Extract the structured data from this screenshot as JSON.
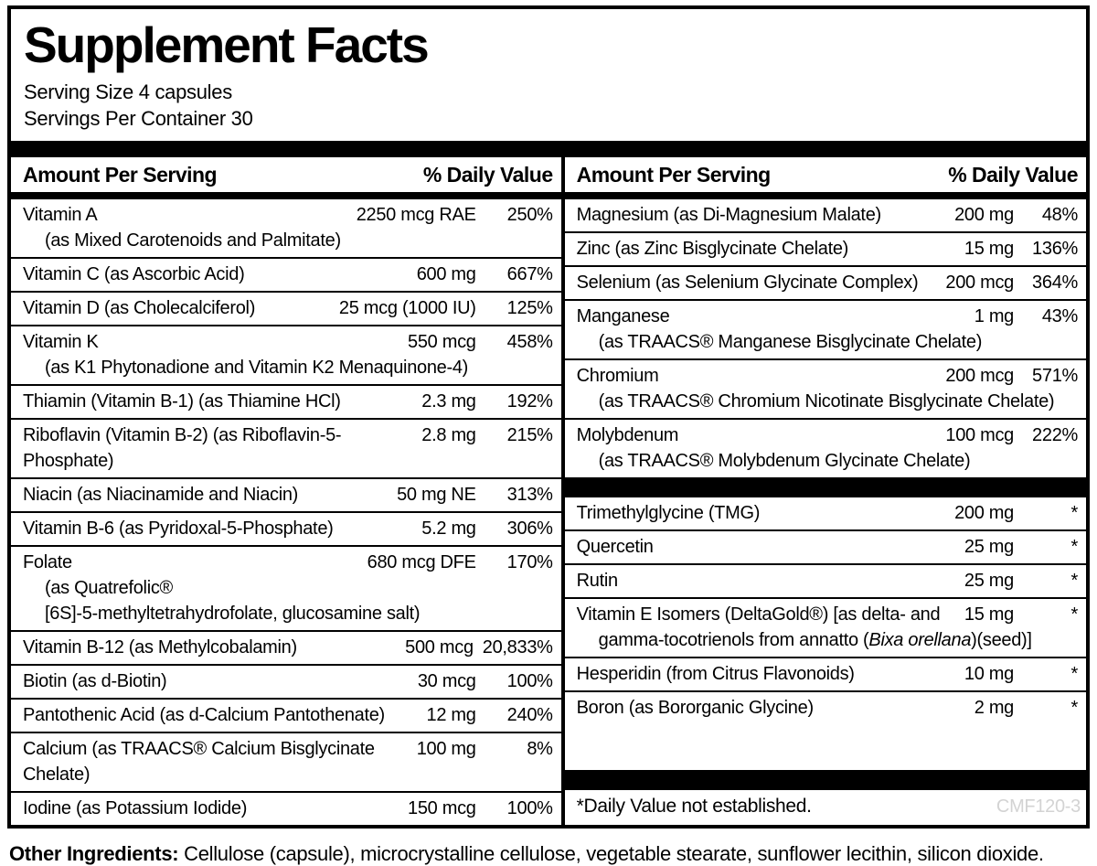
{
  "header": {
    "title": "Supplement Facts",
    "serving_size": "Serving Size 4 capsules",
    "servings_per_container": "Servings Per Container 30"
  },
  "table_header": {
    "amount": "Amount Per Serving",
    "dv": "% Daily Value"
  },
  "left": {
    "rows": [
      {
        "name": "Vitamin A",
        "sub": "(as Mixed Carotenoids and Palmitate)",
        "amount": "2250 mcg RAE",
        "dv": "250%"
      },
      {
        "name": "Vitamin C (as Ascorbic Acid)",
        "amount": "600 mg",
        "dv": "667%"
      },
      {
        "name": "Vitamin D (as Cholecalciferol)",
        "amount": "25 mcg (1000 IU)",
        "dv": "125%"
      },
      {
        "name": "Vitamin K",
        "sub": "(as K1 Phytonadione and Vitamin K2 Menaquinone-4)",
        "amount": "550 mcg",
        "dv": "458%"
      },
      {
        "name": "Thiamin (Vitamin B-1) (as Thiamine HCl)",
        "amount": "2.3 mg",
        "dv": "192%"
      },
      {
        "name": "Riboflavin (Vitamin B-2) (as Riboflavin-5-Phosphate)",
        "amount": "2.8 mg",
        "dv": "215%"
      },
      {
        "name": "Niacin (as Niacinamide and Niacin)",
        "amount": "50 mg NE",
        "dv": "313%"
      },
      {
        "name": "Vitamin B-6 (as Pyridoxal-5-Phosphate)",
        "amount": "5.2 mg",
        "dv": "306%"
      },
      {
        "name": "Folate",
        "sub": "(as Quatrefolic®",
        "sub2": "[6S]-5-methyltetrahydrofolate, glucosamine salt)",
        "amount": "680 mcg DFE",
        "dv": "170%"
      },
      {
        "name": "Vitamin B-12 (as Methylcobalamin)",
        "amount": "500 mcg",
        "dv": "20,833%"
      },
      {
        "name": "Biotin (as d-Biotin)",
        "amount": "30 mcg",
        "dv": "100%"
      },
      {
        "name": "Pantothenic Acid (as d-Calcium Pantothenate)",
        "amount": "12 mg",
        "dv": "240%"
      },
      {
        "name": "Calcium (as TRAACS® Calcium Bisglycinate Chelate)",
        "amount": "100 mg",
        "dv": "8%"
      },
      {
        "name": "Iodine (as Potassium Iodide)",
        "amount": "150 mcg",
        "dv": "100%"
      }
    ]
  },
  "right": {
    "minerals": [
      {
        "name": "Magnesium (as Di-Magnesium Malate)",
        "amount": "200 mg",
        "dv": "48%"
      },
      {
        "name": "Zinc (as Zinc Bisglycinate Chelate)",
        "amount": "15 mg",
        "dv": "136%"
      },
      {
        "name": "Selenium (as Selenium Glycinate Complex)",
        "amount": "200 mcg",
        "dv": "364%"
      },
      {
        "name": "Manganese",
        "sub": "(as TRAACS® Manganese Bisglycinate Chelate)",
        "amount": "1 mg",
        "dv": "43%"
      },
      {
        "name": "Chromium",
        "sub": "(as TRAACS® Chromium Nicotinate Bisglycinate Chelate)",
        "amount": "200 mcg",
        "dv": "571%"
      },
      {
        "name": "Molybdenum",
        "sub": "(as TRAACS® Molybdenum Glycinate Chelate)",
        "amount": "100 mcg",
        "dv": "222%"
      }
    ],
    "others": [
      {
        "name": "Trimethylglycine (TMG)",
        "amount": "200 mg",
        "dv": "*"
      },
      {
        "name": "Quercetin",
        "amount": "25 mg",
        "dv": "*"
      },
      {
        "name": "Rutin",
        "amount": "25 mg",
        "dv": "*"
      },
      {
        "name": "Vitamin E Isomers (DeltaGold®)  [as delta- and",
        "sub_pre": "gamma-tocotrienols from annatto (",
        "sub_italic": "Bixa orellana",
        "sub_post": ")(seed)]",
        "amount": "15 mg",
        "dv": "*"
      },
      {
        "name": "Hesperidin (from Citrus Flavonoids)",
        "amount": "10 mg",
        "dv": "*"
      },
      {
        "name": "Boron (as Bororganic Glycine)",
        "amount": "2 mg",
        "dv": "*"
      }
    ],
    "footnote": "*Daily Value not established.",
    "code": "CMF120-3"
  },
  "footer": {
    "label": "Other Ingredients:",
    "text": " Cellulose (capsule), microcrystalline cellulose, vegetable stearate, sunflower lecithin, silicon dioxide."
  }
}
